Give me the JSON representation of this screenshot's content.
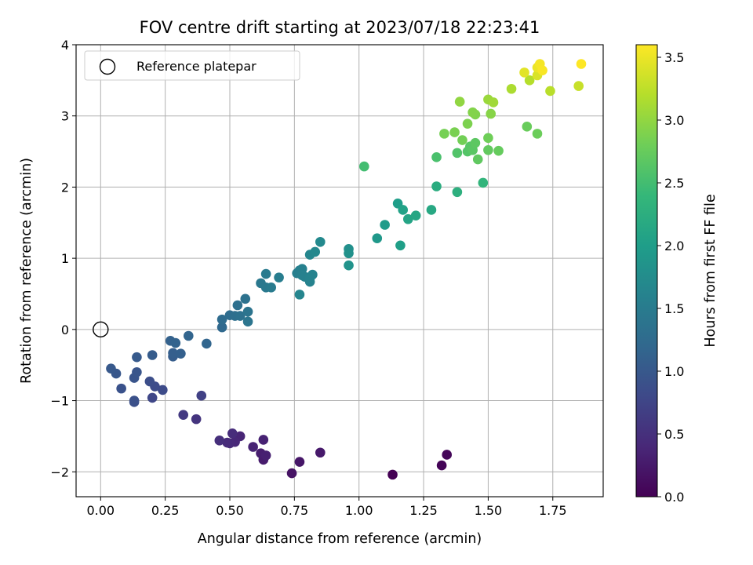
{
  "chart_data": {
    "type": "scatter",
    "title": "FOV centre drift starting at 2023/07/18 22:23:41",
    "xlabel": "Angular distance from reference (arcmin)",
    "ylabel": "Rotation from reference (arcmin)",
    "xlim": [
      -0.095,
      1.945
    ],
    "ylim": [
      -2.35,
      4.0
    ],
    "xticks": [
      0.0,
      0.25,
      0.5,
      0.75,
      1.0,
      1.25,
      1.5,
      1.75
    ],
    "xtick_labels": [
      "0.00",
      "0.25",
      "0.50",
      "0.75",
      "1.00",
      "1.25",
      "1.50",
      "1.75"
    ],
    "yticks": [
      -2,
      -1,
      0,
      1,
      2,
      3,
      4
    ],
    "ytick_labels": [
      "−2",
      "−1",
      "0",
      "1",
      "2",
      "3",
      "4"
    ],
    "grid": true,
    "legend": {
      "position": "top-left",
      "entries": [
        {
          "label": "Reference platepar",
          "marker": "open-circle"
        }
      ]
    },
    "reference_point": {
      "x": 0.0,
      "y": 0.0
    },
    "colorbar": {
      "label": "Hours from first FF file",
      "colormap": "viridis",
      "range": [
        0.0,
        3.6
      ],
      "ticks": [
        0.0,
        0.5,
        1.0,
        1.5,
        2.0,
        2.5,
        3.0,
        3.5
      ],
      "tick_labels": [
        "0.0",
        "0.5",
        "1.0",
        "1.5",
        "2.0",
        "2.5",
        "3.0",
        "3.5"
      ],
      "stops": [
        "#440154",
        "#482878",
        "#3e4989",
        "#31688e",
        "#26828e",
        "#1f9e89",
        "#35b779",
        "#6ece58",
        "#b5de2b",
        "#fde725"
      ]
    },
    "series": [
      {
        "points": [
          [
            1.13,
            -2.04,
            0.0
          ],
          [
            1.32,
            -1.91,
            0.03
          ],
          [
            1.34,
            -1.76,
            0.06
          ],
          [
            0.74,
            -2.02,
            0.18
          ],
          [
            0.77,
            -1.86,
            0.22
          ],
          [
            0.85,
            -1.73,
            0.25
          ],
          [
            0.63,
            -1.83,
            0.28
          ],
          [
            0.62,
            -1.74,
            0.3
          ],
          [
            0.64,
            -1.77,
            0.32
          ],
          [
            0.63,
            -1.55,
            0.34
          ],
          [
            0.59,
            -1.65,
            0.36
          ],
          [
            0.54,
            -1.5,
            0.38
          ],
          [
            0.52,
            -1.58,
            0.4
          ],
          [
            0.5,
            -1.6,
            0.42
          ],
          [
            0.49,
            -1.59,
            0.44
          ],
          [
            0.51,
            -1.46,
            0.46
          ],
          [
            0.46,
            -1.56,
            0.48
          ],
          [
            0.37,
            -1.26,
            0.55
          ],
          [
            0.32,
            -1.2,
            0.6
          ],
          [
            0.39,
            -0.93,
            0.7
          ],
          [
            0.2,
            -0.96,
            0.78
          ],
          [
            0.24,
            -0.85,
            0.82
          ],
          [
            0.21,
            -0.8,
            0.84
          ],
          [
            0.19,
            -0.73,
            0.86
          ],
          [
            0.13,
            -1.02,
            0.88
          ],
          [
            0.13,
            -1.0,
            0.9
          ],
          [
            0.08,
            -0.83,
            0.92
          ],
          [
            0.13,
            -0.68,
            0.94
          ],
          [
            0.14,
            -0.6,
            0.96
          ],
          [
            0.06,
            -0.62,
            0.98
          ],
          [
            0.04,
            -0.55,
            1.0
          ],
          [
            0.14,
            -0.39,
            1.02
          ],
          [
            0.2,
            -0.36,
            1.04
          ],
          [
            0.28,
            -0.38,
            1.06
          ],
          [
            0.28,
            -0.33,
            1.08
          ],
          [
            0.31,
            -0.34,
            1.1
          ],
          [
            0.27,
            -0.16,
            1.12
          ],
          [
            0.29,
            -0.19,
            1.14
          ],
          [
            0.34,
            -0.09,
            1.16
          ],
          [
            0.41,
            -0.2,
            1.18
          ],
          [
            0.47,
            0.03,
            1.22
          ],
          [
            0.47,
            0.14,
            1.26
          ],
          [
            0.5,
            0.2,
            1.28
          ],
          [
            0.52,
            0.19,
            1.3
          ],
          [
            0.53,
            0.34,
            1.32
          ],
          [
            0.54,
            0.19,
            1.34
          ],
          [
            0.56,
            0.43,
            1.36
          ],
          [
            0.57,
            0.25,
            1.38
          ],
          [
            0.57,
            0.11,
            1.4
          ],
          [
            0.62,
            0.65,
            1.44
          ],
          [
            0.64,
            0.59,
            1.46
          ],
          [
            0.64,
            0.78,
            1.48
          ],
          [
            0.66,
            0.59,
            1.5
          ],
          [
            0.69,
            0.73,
            1.52
          ],
          [
            0.76,
            0.79,
            1.55
          ],
          [
            0.77,
            0.83,
            1.56
          ],
          [
            0.78,
            0.85,
            1.57
          ],
          [
            0.78,
            0.76,
            1.58
          ],
          [
            0.79,
            0.74,
            1.59
          ],
          [
            0.81,
            0.67,
            1.6
          ],
          [
            0.81,
            0.72,
            1.61
          ],
          [
            0.82,
            0.77,
            1.62
          ],
          [
            0.77,
            0.49,
            1.64
          ],
          [
            0.81,
            1.05,
            1.66
          ],
          [
            0.83,
            1.09,
            1.68
          ],
          [
            0.85,
            1.23,
            1.7
          ],
          [
            0.96,
            1.13,
            1.8
          ],
          [
            0.96,
            1.07,
            1.82
          ],
          [
            0.96,
            0.9,
            1.84
          ],
          [
            1.07,
            1.28,
            1.92
          ],
          [
            1.1,
            1.47,
            1.96
          ],
          [
            1.15,
            1.77,
            2.0
          ],
          [
            1.16,
            1.18,
            2.02
          ],
          [
            1.17,
            1.68,
            2.06
          ],
          [
            1.19,
            1.55,
            2.1
          ],
          [
            1.22,
            1.6,
            2.12
          ],
          [
            1.28,
            1.68,
            2.16
          ],
          [
            1.3,
            2.01,
            2.22
          ],
          [
            1.38,
            1.93,
            2.28
          ],
          [
            1.48,
            2.06,
            2.35
          ],
          [
            1.02,
            2.29,
            2.5
          ],
          [
            1.3,
            2.42,
            2.55
          ],
          [
            1.38,
            2.48,
            2.6
          ],
          [
            1.42,
            2.5,
            2.62
          ],
          [
            1.43,
            2.57,
            2.64
          ],
          [
            1.44,
            2.52,
            2.66
          ],
          [
            1.45,
            2.62,
            2.68
          ],
          [
            1.46,
            2.39,
            2.7
          ],
          [
            1.5,
            2.52,
            2.72
          ],
          [
            1.54,
            2.51,
            2.74
          ],
          [
            1.65,
            2.85,
            2.76
          ],
          [
            1.69,
            2.75,
            2.78
          ],
          [
            1.5,
            2.69,
            2.8
          ],
          [
            1.4,
            2.66,
            2.82
          ],
          [
            1.33,
            2.75,
            2.84
          ],
          [
            1.37,
            2.77,
            2.86
          ],
          [
            1.42,
            2.89,
            2.88
          ],
          [
            1.45,
            3.02,
            2.9
          ],
          [
            1.44,
            3.05,
            2.92
          ],
          [
            1.51,
            3.03,
            2.94
          ],
          [
            1.39,
            3.2,
            3.0
          ],
          [
            1.5,
            3.23,
            3.05
          ],
          [
            1.52,
            3.19,
            3.08
          ],
          [
            1.59,
            3.38,
            3.15
          ],
          [
            1.66,
            3.5,
            3.2
          ],
          [
            1.74,
            3.35,
            3.22
          ],
          [
            1.85,
            3.42,
            3.3
          ],
          [
            1.69,
            3.57,
            3.4
          ],
          [
            1.64,
            3.61,
            3.45
          ],
          [
            1.69,
            3.68,
            3.5
          ],
          [
            1.7,
            3.73,
            3.55
          ],
          [
            1.71,
            3.64,
            3.57
          ],
          [
            1.86,
            3.73,
            3.6
          ]
        ]
      }
    ]
  }
}
